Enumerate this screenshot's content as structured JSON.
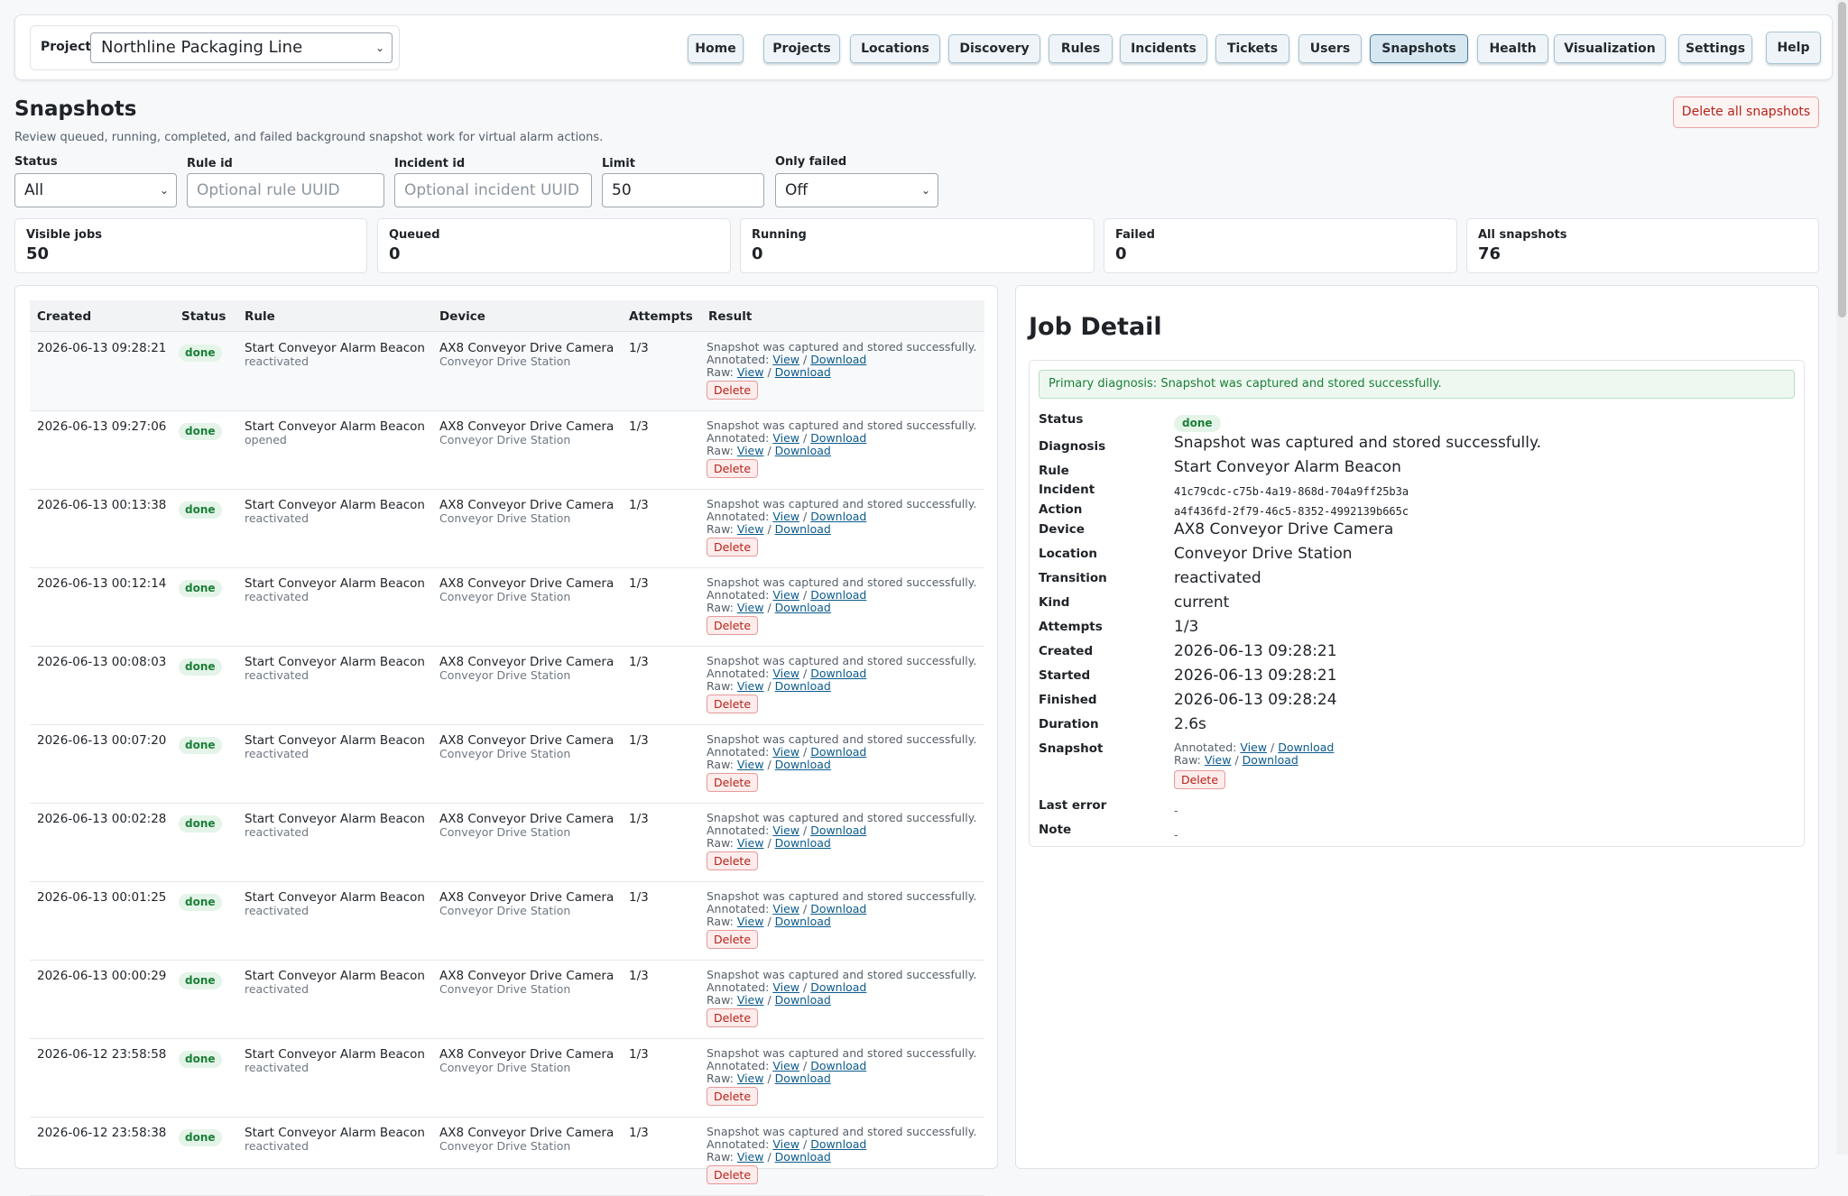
{
  "nav": {
    "project_label": "Project",
    "project_value": "Northline Packaging Line",
    "items": [
      "Home",
      "Projects",
      "Locations",
      "Discovery",
      "Rules",
      "Incidents",
      "Tickets",
      "Users",
      "Snapshots",
      "Health",
      "Visualization",
      "Settings",
      "Help"
    ],
    "active": "Snapshots"
  },
  "header": {
    "title": "Snapshots",
    "subtitle": "Review queued, running, completed, and failed background snapshot work for virtual alarm actions.",
    "delete_all": "Delete all snapshots"
  },
  "filters": {
    "status_label": "Status",
    "status_value": "All",
    "rule_label": "Rule id",
    "rule_placeholder": "Optional rule UUID",
    "incident_label": "Incident id",
    "incident_placeholder": "Optional incident UUID",
    "limit_label": "Limit",
    "limit_value": "50",
    "only_failed_label": "Only failed",
    "only_failed_value": "Off"
  },
  "stats": [
    {
      "label": "Visible jobs",
      "value": "50"
    },
    {
      "label": "Queued",
      "value": "0"
    },
    {
      "label": "Running",
      "value": "0"
    },
    {
      "label": "Failed",
      "value": "0"
    },
    {
      "label": "All snapshots",
      "value": "76"
    }
  ],
  "table": {
    "columns": [
      "Created",
      "Status",
      "Rule",
      "Device",
      "Attempts",
      "Result"
    ],
    "result_text": "Snapshot was captured and stored successfully.",
    "annotated_label": "Annotated:",
    "raw_label": "Raw:",
    "view_label": "View",
    "download_label": "Download",
    "sep": "/",
    "delete_label": "Delete",
    "rows": [
      {
        "created": "2026-06-13 09:28:21",
        "status": "done",
        "rule": "Start Conveyor Alarm Beacon",
        "transition": "reactivated",
        "device": "AX8 Conveyor Drive Camera",
        "location": "Conveyor Drive Station",
        "attempts": "1/3"
      },
      {
        "created": "2026-06-13 09:27:06",
        "status": "done",
        "rule": "Start Conveyor Alarm Beacon",
        "transition": "opened",
        "device": "AX8 Conveyor Drive Camera",
        "location": "Conveyor Drive Station",
        "attempts": "1/3"
      },
      {
        "created": "2026-06-13 00:13:38",
        "status": "done",
        "rule": "Start Conveyor Alarm Beacon",
        "transition": "reactivated",
        "device": "AX8 Conveyor Drive Camera",
        "location": "Conveyor Drive Station",
        "attempts": "1/3"
      },
      {
        "created": "2026-06-13 00:12:14",
        "status": "done",
        "rule": "Start Conveyor Alarm Beacon",
        "transition": "reactivated",
        "device": "AX8 Conveyor Drive Camera",
        "location": "Conveyor Drive Station",
        "attempts": "1/3"
      },
      {
        "created": "2026-06-13 00:08:03",
        "status": "done",
        "rule": "Start Conveyor Alarm Beacon",
        "transition": "reactivated",
        "device": "AX8 Conveyor Drive Camera",
        "location": "Conveyor Drive Station",
        "attempts": "1/3"
      },
      {
        "created": "2026-06-13 00:07:20",
        "status": "done",
        "rule": "Start Conveyor Alarm Beacon",
        "transition": "reactivated",
        "device": "AX8 Conveyor Drive Camera",
        "location": "Conveyor Drive Station",
        "attempts": "1/3"
      },
      {
        "created": "2026-06-13 00:02:28",
        "status": "done",
        "rule": "Start Conveyor Alarm Beacon",
        "transition": "reactivated",
        "device": "AX8 Conveyor Drive Camera",
        "location": "Conveyor Drive Station",
        "attempts": "1/3"
      },
      {
        "created": "2026-06-13 00:01:25",
        "status": "done",
        "rule": "Start Conveyor Alarm Beacon",
        "transition": "reactivated",
        "device": "AX8 Conveyor Drive Camera",
        "location": "Conveyor Drive Station",
        "attempts": "1/3"
      },
      {
        "created": "2026-06-13 00:00:29",
        "status": "done",
        "rule": "Start Conveyor Alarm Beacon",
        "transition": "reactivated",
        "device": "AX8 Conveyor Drive Camera",
        "location": "Conveyor Drive Station",
        "attempts": "1/3"
      },
      {
        "created": "2026-06-12 23:58:58",
        "status": "done",
        "rule": "Start Conveyor Alarm Beacon",
        "transition": "reactivated",
        "device": "AX8 Conveyor Drive Camera",
        "location": "Conveyor Drive Station",
        "attempts": "1/3"
      },
      {
        "created": "2026-06-12 23:58:38",
        "status": "done",
        "rule": "Start Conveyor Alarm Beacon",
        "transition": "reactivated",
        "device": "AX8 Conveyor Drive Camera",
        "location": "Conveyor Drive Station",
        "attempts": "1/3"
      }
    ]
  },
  "detail": {
    "title": "Job Detail",
    "diagnosis_banner": "Primary diagnosis: Snapshot was captured and stored successfully.",
    "fields": [
      {
        "key": "Status",
        "value": "done",
        "kind": "badge"
      },
      {
        "key": "Diagnosis",
        "value": "Snapshot was captured and stored successfully.",
        "kind": "text"
      },
      {
        "key": "Rule",
        "value": "Start Conveyor Alarm Beacon",
        "kind": "text"
      },
      {
        "key": "Incident",
        "value": "41c79cdc-c75b-4a19-868d-704a9ff25b3a",
        "kind": "mono"
      },
      {
        "key": "Action",
        "value": "a4f436fd-2f79-46c5-8352-4992139b665c",
        "kind": "mono"
      },
      {
        "key": "Device",
        "value": "AX8 Conveyor Drive Camera",
        "kind": "text"
      },
      {
        "key": "Location",
        "value": "Conveyor Drive Station",
        "kind": "text"
      },
      {
        "key": "Transition",
        "value": "reactivated",
        "kind": "text"
      },
      {
        "key": "Kind",
        "value": "current",
        "kind": "text"
      },
      {
        "key": "Attempts",
        "value": "1/3",
        "kind": "text"
      },
      {
        "key": "Created",
        "value": "2026-06-13 09:28:21",
        "kind": "text"
      },
      {
        "key": "Started",
        "value": "2026-06-13 09:28:21",
        "kind": "text"
      },
      {
        "key": "Finished",
        "value": "2026-06-13 09:28:24",
        "kind": "text"
      },
      {
        "key": "Duration",
        "value": "2.6s",
        "kind": "text"
      },
      {
        "key": "Snapshot",
        "value": "",
        "kind": "snapshot"
      },
      {
        "key": "Last error",
        "value": "-",
        "kind": "dash"
      },
      {
        "key": "Note",
        "value": "-",
        "kind": "dash"
      }
    ]
  }
}
